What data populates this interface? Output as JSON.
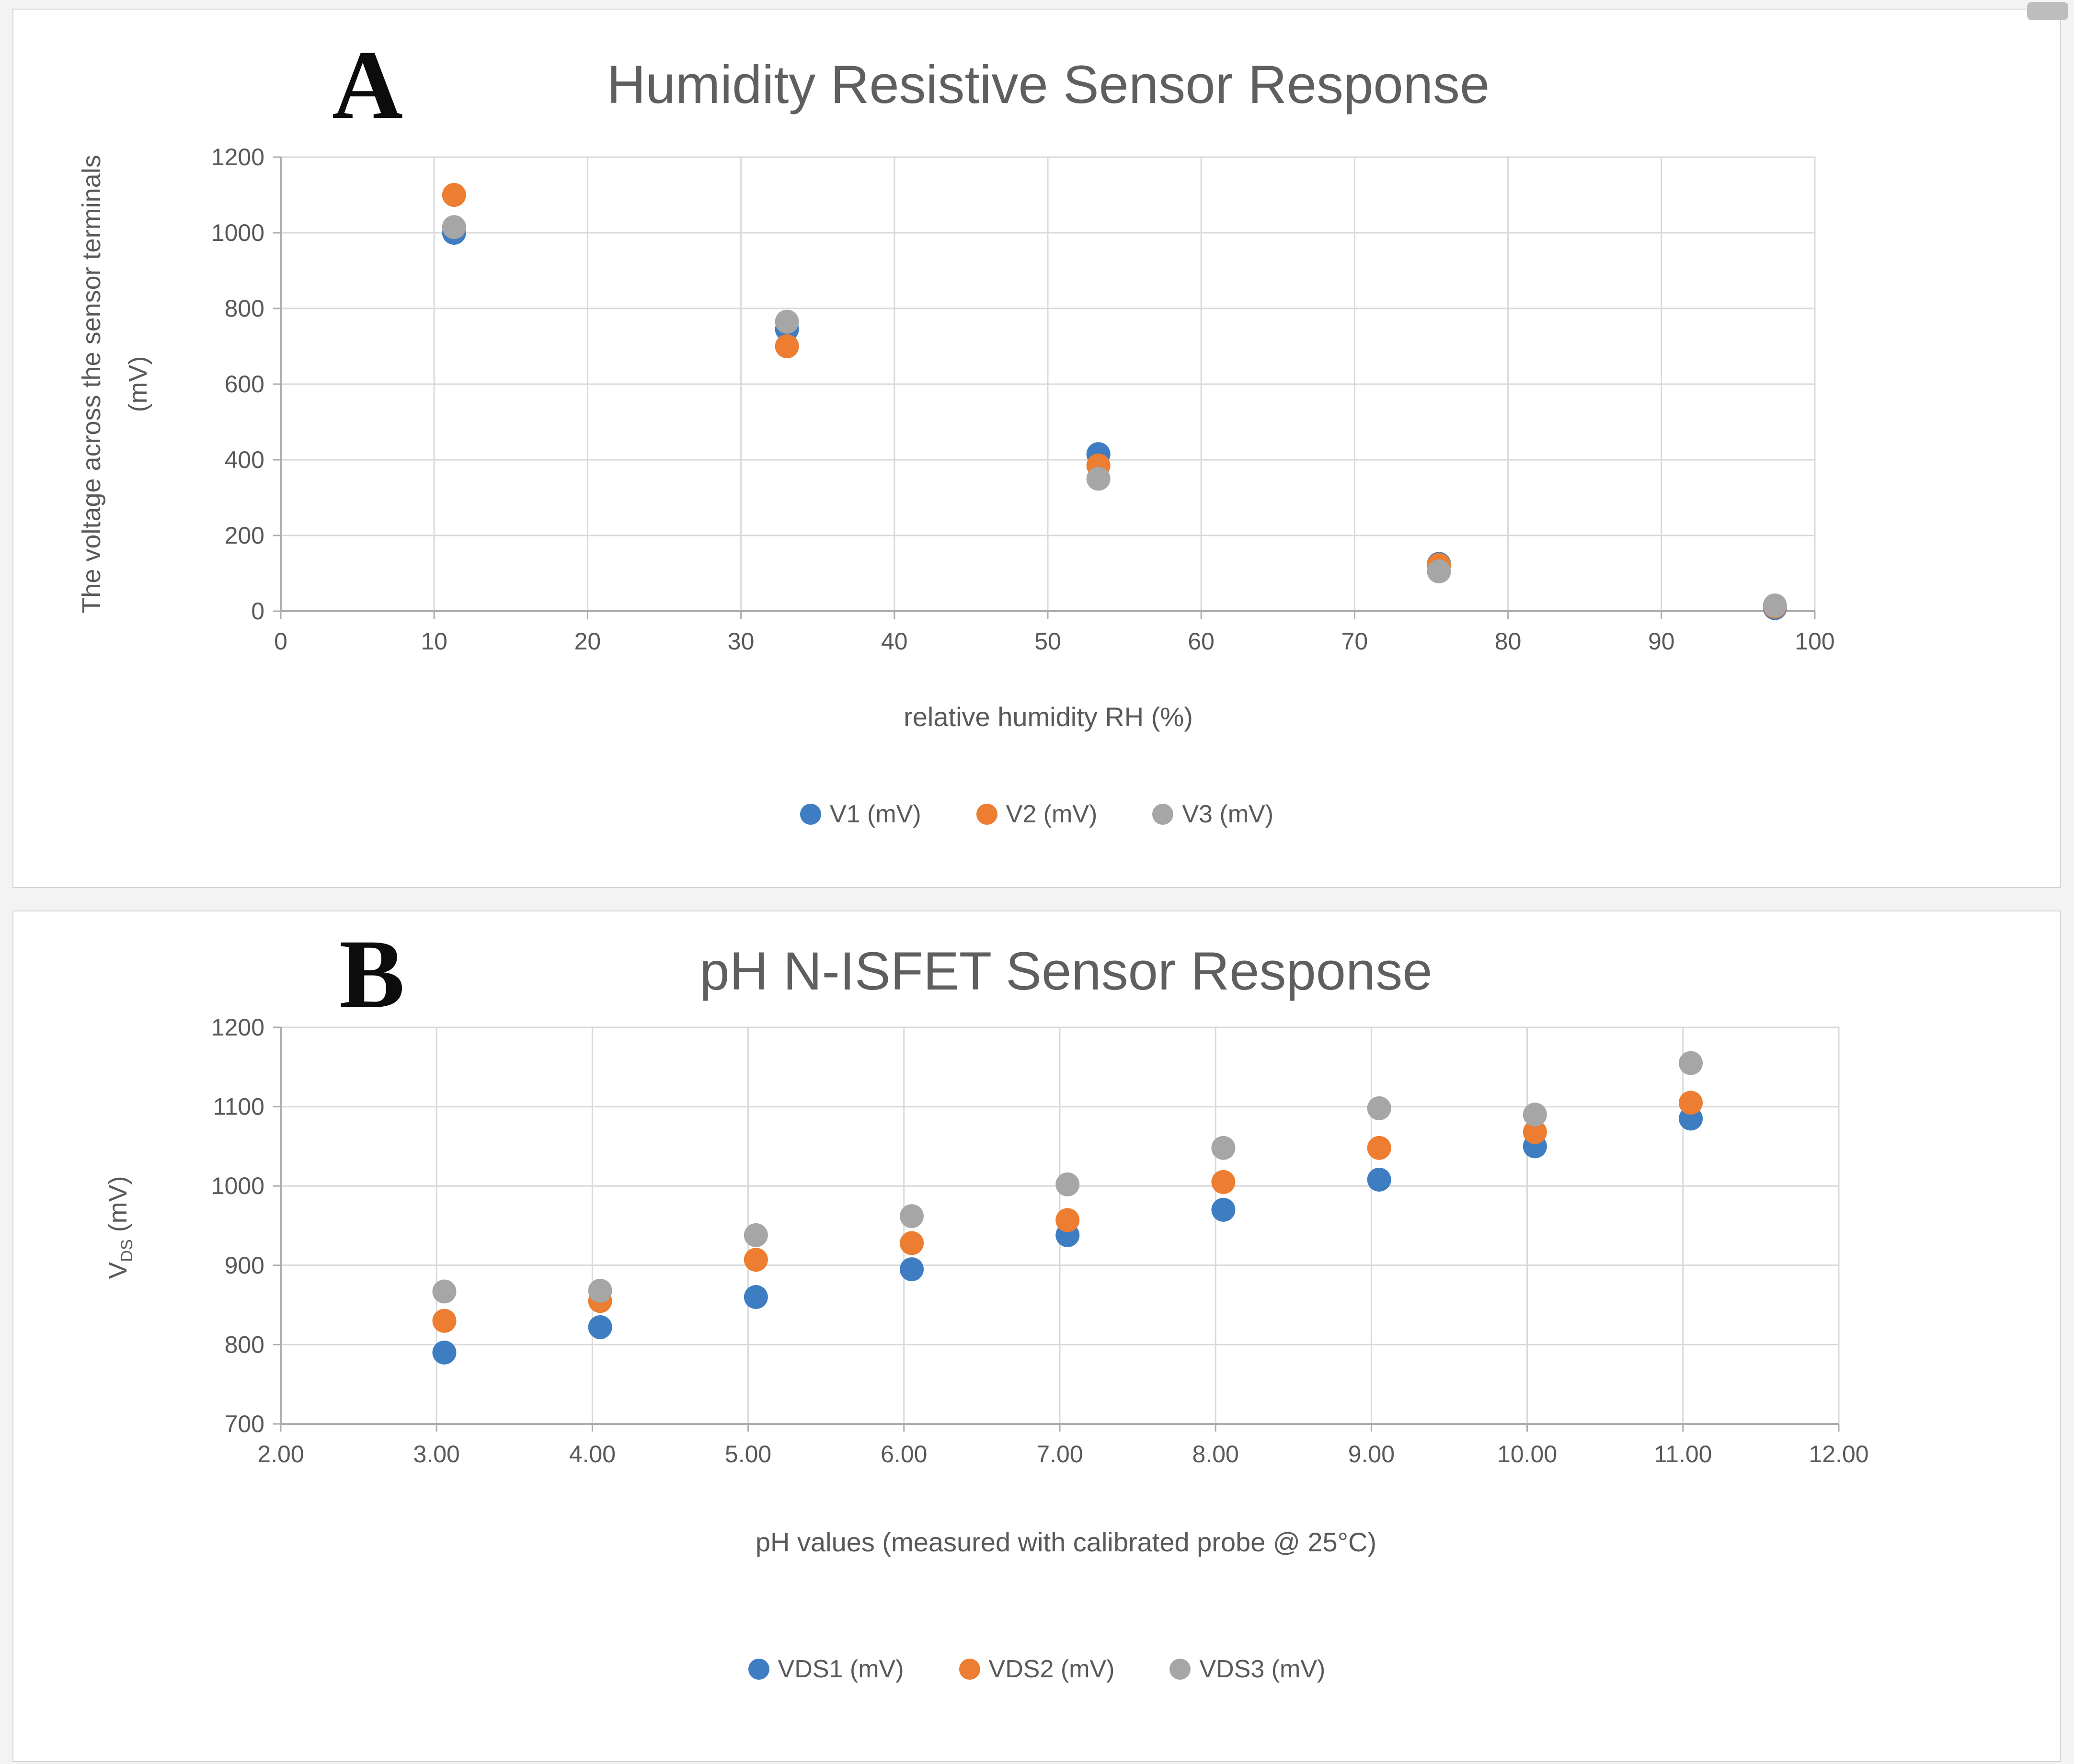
{
  "page": {
    "background": "#f3f3f3",
    "panel_background": "#ffffff",
    "panel_border": "#d4d4d4",
    "text_color": "#595959",
    "grid_color": "#d9d9d9",
    "axis_color": "#adadad"
  },
  "chart_data": [
    {
      "type": "scatter",
      "panel_letter": "A",
      "title": "Humidity Resistive Sensor Response",
      "x_label": "relative humidity RH (%)",
      "y_label_lines": [
        "The voltage across the sensor terminals",
        "(mV)"
      ],
      "xlim": [
        0,
        100
      ],
      "ylim": [
        0,
        1200
      ],
      "x_ticks": [
        "0",
        "10",
        "20",
        "30",
        "40",
        "50",
        "60",
        "70",
        "80",
        "90",
        "100"
      ],
      "y_ticks": [
        "0",
        "200",
        "400",
        "600",
        "800",
        "1000",
        "1200"
      ],
      "grid": true,
      "legend_position": "bottom",
      "series": [
        {
          "name": "V1 (mV)",
          "color": "#3e7dc1",
          "points": [
            [
              11.3,
              1000
            ],
            [
              33,
              745
            ],
            [
              53.3,
              415
            ],
            [
              75.5,
              125
            ],
            [
              97.4,
              8
            ]
          ]
        },
        {
          "name": "V2 (mV)",
          "color": "#ed7d31",
          "points": [
            [
              11.3,
              1100
            ],
            [
              33,
              700
            ],
            [
              53.3,
              385
            ],
            [
              75.5,
              122
            ],
            [
              97.4,
              12
            ]
          ]
        },
        {
          "name": "V3 (mV)",
          "color": "#a6a6a6",
          "points": [
            [
              11.3,
              1015
            ],
            [
              33,
              765
            ],
            [
              53.3,
              350
            ],
            [
              75.5,
              105
            ],
            [
              97.4,
              15
            ]
          ]
        }
      ]
    },
    {
      "type": "scatter",
      "panel_letter": "B",
      "title": "pH N-ISFET Sensor Response",
      "x_label": "pH values (measured with calibrated probe @ 25°C)",
      "y_label": {
        "pre": "V",
        "sub": "DS",
        "post": " (mV)"
      },
      "xlim": [
        2,
        12
      ],
      "ylim": [
        700,
        1200
      ],
      "x_ticks": [
        "2.00",
        "3.00",
        "4.00",
        "5.00",
        "6.00",
        "7.00",
        "8.00",
        "9.00",
        "10.00",
        "11.00",
        "12.00"
      ],
      "y_ticks": [
        "700",
        "800",
        "900",
        "1000",
        "1100",
        "1200"
      ],
      "grid": true,
      "legend_position": "bottom",
      "series": [
        {
          "name": "VDS1 (mV)",
          "color": "#3e7dc1",
          "points": [
            [
              3.05,
              790
            ],
            [
              4.05,
              822
            ],
            [
              5.05,
              860
            ],
            [
              6.05,
              895
            ],
            [
              7.05,
              938
            ],
            [
              8.05,
              970
            ],
            [
              9.05,
              1008
            ],
            [
              10.05,
              1050
            ],
            [
              11.05,
              1085
            ]
          ]
        },
        {
          "name": "VDS2 (mV)",
          "color": "#ed7d31",
          "points": [
            [
              3.05,
              830
            ],
            [
              4.05,
              855
            ],
            [
              5.05,
              907
            ],
            [
              6.05,
              928
            ],
            [
              7.05,
              957
            ],
            [
              8.05,
              1005
            ],
            [
              9.05,
              1048
            ],
            [
              10.05,
              1068
            ],
            [
              11.05,
              1105
            ]
          ]
        },
        {
          "name": "VDS3 (mV)",
          "color": "#a6a6a6",
          "points": [
            [
              3.05,
              867
            ],
            [
              4.05,
              868
            ],
            [
              5.05,
              938
            ],
            [
              6.05,
              962
            ],
            [
              7.05,
              1002
            ],
            [
              8.05,
              1048
            ],
            [
              9.05,
              1098
            ],
            [
              10.05,
              1090
            ],
            [
              11.05,
              1155
            ]
          ]
        }
      ]
    }
  ]
}
